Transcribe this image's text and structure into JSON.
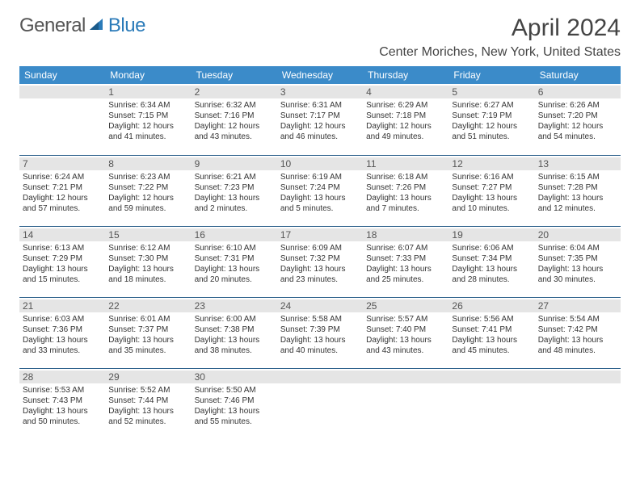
{
  "brand": {
    "general": "General",
    "blue": "Blue"
  },
  "header": {
    "month_title": "April 2024",
    "location": "Center Moriches, New York, United States"
  },
  "colors": {
    "header_bg": "#3b8bc9",
    "header_text": "#ffffff",
    "day_stripe": "#e5e5e5",
    "rule": "#2b5f8a",
    "logo_blue": "#2b7bb9",
    "body_text": "#333333"
  },
  "typography": {
    "title_fontsize": 30,
    "location_fontsize": 16,
    "dayheader_fontsize": 12,
    "daynum_fontsize": 12,
    "info_fontsize": 10
  },
  "day_headers": [
    "Sunday",
    "Monday",
    "Tuesday",
    "Wednesday",
    "Thursday",
    "Friday",
    "Saturday"
  ],
  "weeks": [
    [
      {
        "n": "",
        "sr": "",
        "ss": "",
        "dl": ""
      },
      {
        "n": "1",
        "sr": "Sunrise: 6:34 AM",
        "ss": "Sunset: 7:15 PM",
        "dl": "Daylight: 12 hours and 41 minutes."
      },
      {
        "n": "2",
        "sr": "Sunrise: 6:32 AM",
        "ss": "Sunset: 7:16 PM",
        "dl": "Daylight: 12 hours and 43 minutes."
      },
      {
        "n": "3",
        "sr": "Sunrise: 6:31 AM",
        "ss": "Sunset: 7:17 PM",
        "dl": "Daylight: 12 hours and 46 minutes."
      },
      {
        "n": "4",
        "sr": "Sunrise: 6:29 AM",
        "ss": "Sunset: 7:18 PM",
        "dl": "Daylight: 12 hours and 49 minutes."
      },
      {
        "n": "5",
        "sr": "Sunrise: 6:27 AM",
        "ss": "Sunset: 7:19 PM",
        "dl": "Daylight: 12 hours and 51 minutes."
      },
      {
        "n": "6",
        "sr": "Sunrise: 6:26 AM",
        "ss": "Sunset: 7:20 PM",
        "dl": "Daylight: 12 hours and 54 minutes."
      }
    ],
    [
      {
        "n": "7",
        "sr": "Sunrise: 6:24 AM",
        "ss": "Sunset: 7:21 PM",
        "dl": "Daylight: 12 hours and 57 minutes."
      },
      {
        "n": "8",
        "sr": "Sunrise: 6:23 AM",
        "ss": "Sunset: 7:22 PM",
        "dl": "Daylight: 12 hours and 59 minutes."
      },
      {
        "n": "9",
        "sr": "Sunrise: 6:21 AM",
        "ss": "Sunset: 7:23 PM",
        "dl": "Daylight: 13 hours and 2 minutes."
      },
      {
        "n": "10",
        "sr": "Sunrise: 6:19 AM",
        "ss": "Sunset: 7:24 PM",
        "dl": "Daylight: 13 hours and 5 minutes."
      },
      {
        "n": "11",
        "sr": "Sunrise: 6:18 AM",
        "ss": "Sunset: 7:26 PM",
        "dl": "Daylight: 13 hours and 7 minutes."
      },
      {
        "n": "12",
        "sr": "Sunrise: 6:16 AM",
        "ss": "Sunset: 7:27 PM",
        "dl": "Daylight: 13 hours and 10 minutes."
      },
      {
        "n": "13",
        "sr": "Sunrise: 6:15 AM",
        "ss": "Sunset: 7:28 PM",
        "dl": "Daylight: 13 hours and 12 minutes."
      }
    ],
    [
      {
        "n": "14",
        "sr": "Sunrise: 6:13 AM",
        "ss": "Sunset: 7:29 PM",
        "dl": "Daylight: 13 hours and 15 minutes."
      },
      {
        "n": "15",
        "sr": "Sunrise: 6:12 AM",
        "ss": "Sunset: 7:30 PM",
        "dl": "Daylight: 13 hours and 18 minutes."
      },
      {
        "n": "16",
        "sr": "Sunrise: 6:10 AM",
        "ss": "Sunset: 7:31 PM",
        "dl": "Daylight: 13 hours and 20 minutes."
      },
      {
        "n": "17",
        "sr": "Sunrise: 6:09 AM",
        "ss": "Sunset: 7:32 PM",
        "dl": "Daylight: 13 hours and 23 minutes."
      },
      {
        "n": "18",
        "sr": "Sunrise: 6:07 AM",
        "ss": "Sunset: 7:33 PM",
        "dl": "Daylight: 13 hours and 25 minutes."
      },
      {
        "n": "19",
        "sr": "Sunrise: 6:06 AM",
        "ss": "Sunset: 7:34 PM",
        "dl": "Daylight: 13 hours and 28 minutes."
      },
      {
        "n": "20",
        "sr": "Sunrise: 6:04 AM",
        "ss": "Sunset: 7:35 PM",
        "dl": "Daylight: 13 hours and 30 minutes."
      }
    ],
    [
      {
        "n": "21",
        "sr": "Sunrise: 6:03 AM",
        "ss": "Sunset: 7:36 PM",
        "dl": "Daylight: 13 hours and 33 minutes."
      },
      {
        "n": "22",
        "sr": "Sunrise: 6:01 AM",
        "ss": "Sunset: 7:37 PM",
        "dl": "Daylight: 13 hours and 35 minutes."
      },
      {
        "n": "23",
        "sr": "Sunrise: 6:00 AM",
        "ss": "Sunset: 7:38 PM",
        "dl": "Daylight: 13 hours and 38 minutes."
      },
      {
        "n": "24",
        "sr": "Sunrise: 5:58 AM",
        "ss": "Sunset: 7:39 PM",
        "dl": "Daylight: 13 hours and 40 minutes."
      },
      {
        "n": "25",
        "sr": "Sunrise: 5:57 AM",
        "ss": "Sunset: 7:40 PM",
        "dl": "Daylight: 13 hours and 43 minutes."
      },
      {
        "n": "26",
        "sr": "Sunrise: 5:56 AM",
        "ss": "Sunset: 7:41 PM",
        "dl": "Daylight: 13 hours and 45 minutes."
      },
      {
        "n": "27",
        "sr": "Sunrise: 5:54 AM",
        "ss": "Sunset: 7:42 PM",
        "dl": "Daylight: 13 hours and 48 minutes."
      }
    ],
    [
      {
        "n": "28",
        "sr": "Sunrise: 5:53 AM",
        "ss": "Sunset: 7:43 PM",
        "dl": "Daylight: 13 hours and 50 minutes."
      },
      {
        "n": "29",
        "sr": "Sunrise: 5:52 AM",
        "ss": "Sunset: 7:44 PM",
        "dl": "Daylight: 13 hours and 52 minutes."
      },
      {
        "n": "30",
        "sr": "Sunrise: 5:50 AM",
        "ss": "Sunset: 7:46 PM",
        "dl": "Daylight: 13 hours and 55 minutes."
      },
      {
        "n": "",
        "sr": "",
        "ss": "",
        "dl": ""
      },
      {
        "n": "",
        "sr": "",
        "ss": "",
        "dl": ""
      },
      {
        "n": "",
        "sr": "",
        "ss": "",
        "dl": ""
      },
      {
        "n": "",
        "sr": "",
        "ss": "",
        "dl": ""
      }
    ]
  ]
}
